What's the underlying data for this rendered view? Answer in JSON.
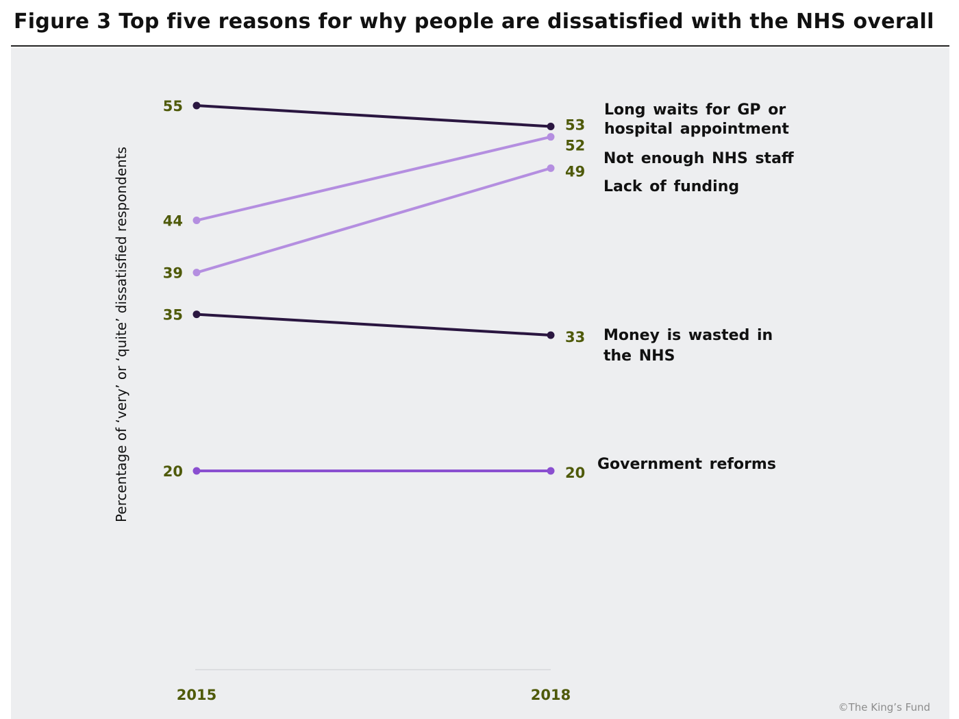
{
  "title": "Figure 3 Top five reasons for why people are dissatisfied with the NHS overall",
  "copyright": "©The King’s Fund",
  "colors": {
    "dark": "#2a1640",
    "light_purple": "#b48ee0",
    "mid_purple": "#8a4fd0",
    "value_label": "#4f5a0a",
    "series_label": "#111111",
    "background": "#edeef0"
  },
  "chart_data": {
    "type": "line",
    "ylabel": "Percentage of ‘very’ or ‘quite’ dissatisfied respondents",
    "x": [
      "2015",
      "2018"
    ],
    "series": [
      {
        "name": "Long waits for GP or hospital appointment",
        "label_lines": [
          "Long waits for GP or",
          "hospital appointment"
        ],
        "values": [
          55,
          53
        ],
        "color": "#2a1640"
      },
      {
        "name": "Not enough NHS staff",
        "label_lines": [
          "Not enough NHS staff"
        ],
        "values": [
          44,
          52
        ],
        "color": "#b48ee0"
      },
      {
        "name": "Lack of funding",
        "label_lines": [
          "Lack of funding"
        ],
        "values": [
          39,
          49
        ],
        "color": "#b48ee0"
      },
      {
        "name": "Money is wasted in the NHS",
        "label_lines": [
          "Money is wasted in",
          "the NHS"
        ],
        "values": [
          35,
          33
        ],
        "color": "#2a1640"
      },
      {
        "name": "Government reforms",
        "label_lines": [
          "Government reforms"
        ],
        "values": [
          20,
          20
        ],
        "color": "#8a4fd0"
      }
    ],
    "grid": false,
    "legend": "direct labels right"
  }
}
